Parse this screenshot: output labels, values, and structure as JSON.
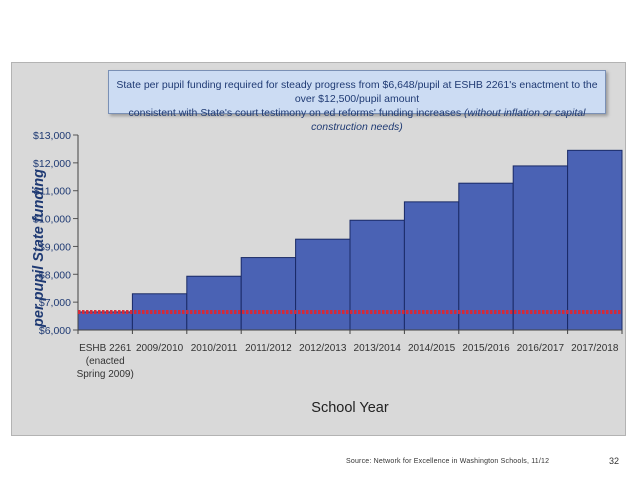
{
  "chart_data": {
    "type": "bar",
    "title_line1": "State per pupil funding required for steady progress from $6,648/pupil at ESHB 2261's enactment to the over $12,500/pupil amount",
    "title_line2_main": "consistent with State's court testimony on ed reforms' funding increases",
    "title_line2_italic": "(without inflation or capital construction needs)",
    "ylabel": "per pupil State funding",
    "xlabel": "School Year",
    "ylim": [
      6000,
      13000
    ],
    "yticks": [
      6000,
      7000,
      8000,
      9000,
      10000,
      11000,
      12000,
      13000
    ],
    "ytick_labels": [
      "$6,000",
      "$7,000",
      "$8,000",
      "$9,000",
      "$10,000",
      "$11,000",
      "$12,000",
      "$13,000"
    ],
    "categories": [
      [
        "ESHB 2261",
        "(enacted",
        "Spring 2009)"
      ],
      [
        "2009/2010"
      ],
      [
        "2010/2011"
      ],
      [
        "2011/2012"
      ],
      [
        "2012/2013"
      ],
      [
        "2013/2014"
      ],
      [
        "2014/2015"
      ],
      [
        "2015/2016"
      ],
      [
        "2016/2017"
      ],
      [
        "2017/2018"
      ]
    ],
    "values": [
      6648,
      7300,
      7930,
      8600,
      9260,
      9940,
      10600,
      11270,
      11890,
      12450
    ],
    "reference_line": 6648,
    "colors": {
      "bar": "#4a62b4",
      "bar_edge": "#1a2a66",
      "reference": "#d42a3a",
      "axis_text": "#1f3a73"
    }
  },
  "footer": {
    "source": "Source: Network for Excellence in Washington Schools, 11/12",
    "page_number": "32"
  }
}
